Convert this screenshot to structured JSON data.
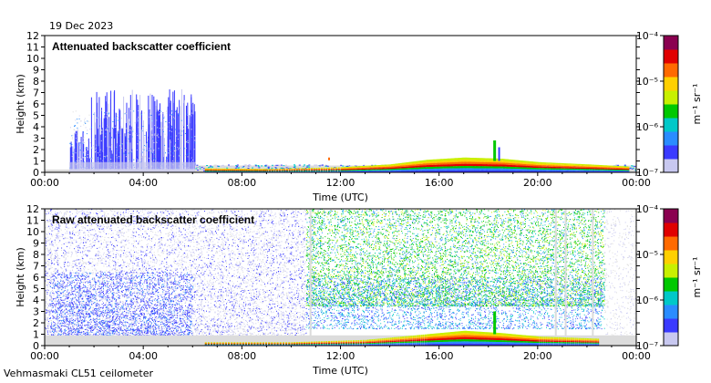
{
  "header": {
    "date": "19 Dec 2023"
  },
  "footer": {
    "instrument": "Vehmasmaki CL51 ceilometer"
  },
  "colors": {
    "colormap": [
      "#dcdcdc",
      "#c8c8f0",
      "#3a3aff",
      "#2a8cff",
      "#00c8c8",
      "#00c800",
      "#c8f000",
      "#ffd000",
      "#ff6a00",
      "#e00000",
      "#8a0050"
    ],
    "background": "#ffffff"
  },
  "chart_data": [
    {
      "type": "heatmap",
      "title": "Attenuated backscatter coefficient",
      "xlabel": "Time (UTC)",
      "ylabel": "Height (km)",
      "x_ticks": [
        "00:00",
        "04:00",
        "08:00",
        "12:00",
        "16:00",
        "20:00",
        "00:00"
      ],
      "y_ticks": [
        "0",
        "1",
        "2",
        "3",
        "4",
        "5",
        "6",
        "7",
        "8",
        "9",
        "10",
        "11",
        "12"
      ],
      "xlim_hours": [
        0,
        24
      ],
      "ylim": [
        0,
        12
      ],
      "colorbar": {
        "label": "m⁻¹ sr⁻¹",
        "scale": "log",
        "range": [
          1e-07,
          0.0001
        ],
        "tick_labels": [
          "10⁻⁴",
          "10⁻⁵",
          "10⁻⁶",
          "10⁻⁷"
        ]
      },
      "features": [
        {
          "name": "precipitation/fall streaks",
          "t_start_h": 1.0,
          "t_end_h": 6.1,
          "top_km": 7.3,
          "level": 2
        },
        {
          "name": "boundary layer",
          "t_start_h": 6.1,
          "t_end_h": 24.0,
          "top_km": 1.5,
          "level": 5
        }
      ]
    },
    {
      "type": "heatmap",
      "title": "Raw attenuated backscatter coefficient",
      "xlabel": "Time (UTC)",
      "ylabel": "Height (km)",
      "x_ticks": [
        "00:00",
        "04:00",
        "08:00",
        "12:00",
        "16:00",
        "20:00",
        "00:00"
      ],
      "y_ticks": [
        "0",
        "1",
        "2",
        "3",
        "4",
        "5",
        "6",
        "7",
        "8",
        "9",
        "10",
        "11",
        "12"
      ],
      "xlim_hours": [
        0,
        24
      ],
      "ylim": [
        0,
        12
      ],
      "colorbar": {
        "label": "m⁻¹ sr⁻¹",
        "scale": "log",
        "range": [
          1e-07,
          0.0001
        ],
        "tick_labels": [
          "10⁻⁴",
          "10⁻⁵",
          "10⁻⁶",
          "10⁻⁷"
        ]
      },
      "features": [
        {
          "name": "night noise",
          "t_start_h": 0.0,
          "t_end_h": 10.6,
          "level": 2
        },
        {
          "name": "daylight noise",
          "t_start_h": 10.6,
          "t_end_h": 22.7,
          "level": 5
        },
        {
          "name": "boundary layer",
          "t_start_h": 6.1,
          "t_end_h": 24.0,
          "top_km": 1.5,
          "level": 7
        }
      ]
    }
  ]
}
